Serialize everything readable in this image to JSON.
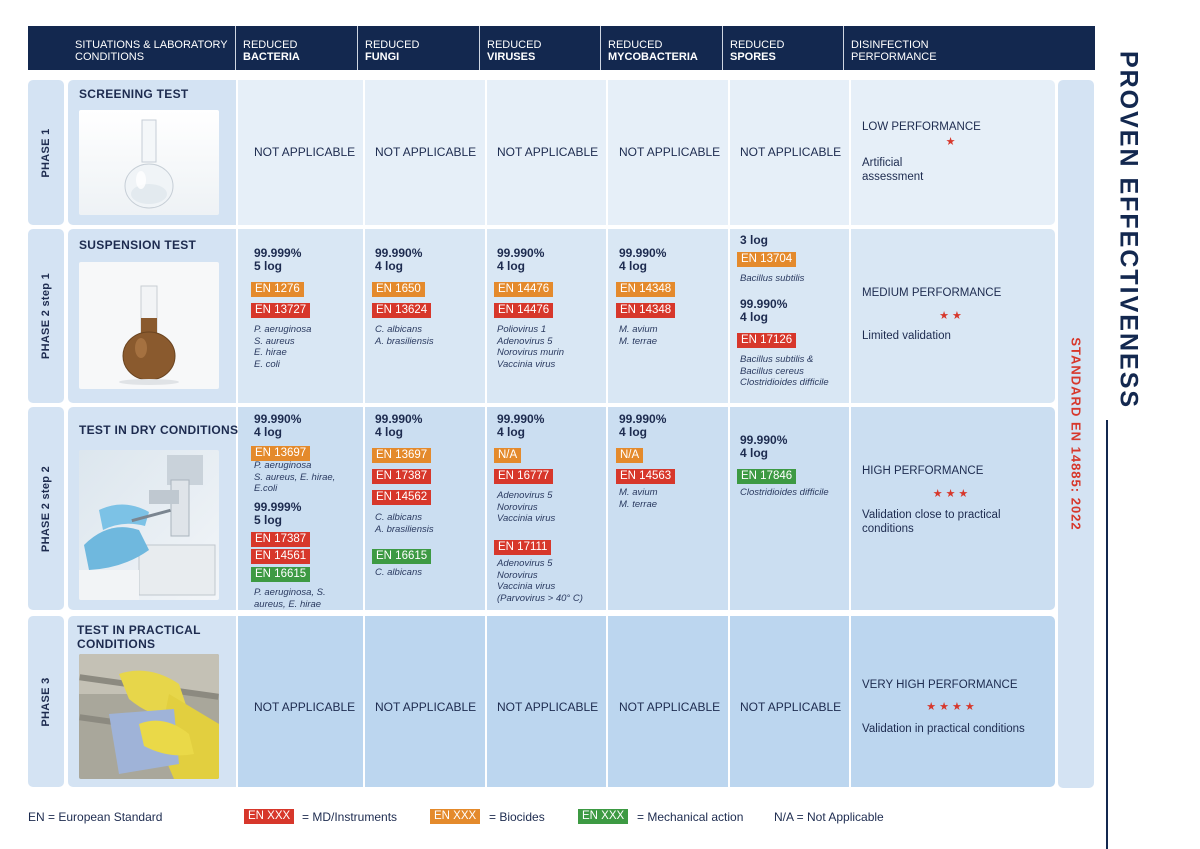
{
  "header": {
    "columns": [
      {
        "line1": "SITUATIONS & LABORATORY",
        "line2": "CONDITIONS"
      },
      {
        "line1": "REDUCED",
        "line2": "BACTERIA"
      },
      {
        "line1": "REDUCED",
        "line2": "FUNGI"
      },
      {
        "line1": "REDUCED",
        "line2": "VIRUSES"
      },
      {
        "line1": "REDUCED",
        "line2": "MYCOBACTERIA"
      },
      {
        "line1": "REDUCED",
        "line2": "SPORES"
      },
      {
        "line1": "DISINFECTION",
        "line2": "PERFORMANCE"
      }
    ]
  },
  "title": "PROVEN EFFECTIVENESS",
  "standard": "STANDARD EN 14885: 2022",
  "colors": {
    "header": "#13284f",
    "red": "#d7372b",
    "orange": "#e48a2c",
    "green": "#3d9a43"
  },
  "rows": [
    {
      "phase": "PHASE 1",
      "test": "SCREENING TEST",
      "photo": "flask-clear-photo",
      "bacteria": {
        "na": "NOT APPLICABLE"
      },
      "fungi": {
        "na": "NOT APPLICABLE"
      },
      "viruses": {
        "na": "NOT APPLICABLE"
      },
      "mycobacteria": {
        "na": "NOT APPLICABLE"
      },
      "spores": {
        "na": "NOT APPLICABLE"
      },
      "performance": {
        "title": "LOW PERFORMANCE",
        "stars": "★",
        "star_count": 1,
        "desc": "Artificial assessment"
      }
    },
    {
      "phase": "PHASE 2 step 1",
      "test": "SUSPENSION TEST",
      "photo": "flask-brown-liquid-photo",
      "bacteria": {
        "pct": "99.999%",
        "log": "5 log",
        "badges": [
          {
            "text": "EN 1276",
            "color": "orange"
          },
          {
            "text": "EN 13727",
            "color": "red"
          }
        ],
        "organisms": [
          "P. aeruginosa",
          "S. aureus",
          "E. hirae",
          "E. coli"
        ]
      },
      "fungi": {
        "pct": "99.990%",
        "log": "4 log",
        "badges": [
          {
            "text": "EN 1650",
            "color": "orange"
          },
          {
            "text": "EN 13624",
            "color": "red"
          }
        ],
        "organisms": [
          "C. albicans",
          "A. brasiliensis"
        ]
      },
      "viruses": {
        "pct": "99.990%",
        "log": "4 log",
        "badges": [
          {
            "text": "EN 14476",
            "color": "orange"
          },
          {
            "text": "EN 14476",
            "color": "red"
          }
        ],
        "organisms": [
          "Poliovirus 1",
          "Adenovirus 5",
          "Norovirus murin",
          "Vaccinia virus"
        ]
      },
      "mycobacteria": {
        "pct": "99.990%",
        "log": "4 log",
        "badges": [
          {
            "text": "EN 14348",
            "color": "orange"
          },
          {
            "text": "EN 14348",
            "color": "red"
          }
        ],
        "organisms": [
          "M. avium",
          "M. terrae"
        ]
      },
      "spores": {
        "log1": "3 log",
        "badge1": {
          "text": "EN 13704",
          "color": "orange"
        },
        "organisms1": [
          "Bacillus subtilis"
        ],
        "pct2": "99.990%",
        "log2": "4 log",
        "badge2": {
          "text": "EN 17126",
          "color": "red"
        },
        "organisms2": [
          "Bacillus subtilis &",
          "Bacillus cereus",
          "Clostridioides difficile"
        ]
      },
      "performance": {
        "title": "MEDIUM PERFORMANCE",
        "stars": "★★",
        "star_count": 2,
        "desc": "Limited validation"
      }
    },
    {
      "phase": "PHASE 2 step 2",
      "test": "TEST IN DRY CONDITIONS",
      "photo": "laboratory-microscope-photo",
      "bacteria": {
        "pct": "99.990%",
        "log": "4 log",
        "badge1": {
          "text": "EN 13697",
          "color": "orange"
        },
        "organisms1": [
          "P. aeruginosa",
          "S. aureus, E. hirae,",
          "E.coli"
        ],
        "pct2": "99.999%",
        "log2": "5 log",
        "badges2": [
          {
            "text": "EN 17387",
            "color": "red"
          },
          {
            "text": "EN 14561",
            "color": "red"
          },
          {
            "text": "EN 16615",
            "color": "green"
          }
        ],
        "organisms2": [
          "P. aeruginosa, S.",
          "aureus, E. hirae"
        ]
      },
      "fungi": {
        "pct": "99.990%",
        "log": "4 log",
        "badges": [
          {
            "text": "EN 13697",
            "color": "orange"
          },
          {
            "text": "EN 17387",
            "color": "red"
          },
          {
            "text": "EN 14562",
            "color": "red"
          }
        ],
        "organisms1": [
          "C. albicans",
          "A. brasiliensis"
        ],
        "badge2": {
          "text": "EN 16615",
          "color": "green"
        },
        "organisms2": [
          "C. albicans"
        ]
      },
      "viruses": {
        "pct": "99.990%",
        "log": "4 log",
        "badges": [
          {
            "text": "N/A",
            "color": "orange"
          },
          {
            "text": "EN 16777",
            "color": "red"
          }
        ],
        "organisms1": [
          "Adenovirus 5",
          "Norovirus",
          "Vaccinia virus"
        ],
        "badge2": {
          "text": "EN 17111",
          "color": "red"
        },
        "organisms2": [
          "Adenovirus 5",
          "Norovirus",
          "Vaccinia virus",
          "(Parvovirus > 40° C)"
        ]
      },
      "mycobacteria": {
        "pct": "99.990%",
        "log": "4 log",
        "badges": [
          {
            "text": "N/A",
            "color": "orange"
          },
          {
            "text": "EN 14563",
            "color": "red"
          }
        ],
        "organisms": [
          "M. avium",
          "M. terrae"
        ]
      },
      "spores": {
        "pct": "99.990%",
        "log": "4 log",
        "badge": {
          "text": "EN 17846",
          "color": "green"
        },
        "organisms": [
          "Clostridioides difficile"
        ]
      },
      "performance": {
        "title": "HIGH PERFORMANCE",
        "stars": "★★★",
        "star_count": 3,
        "desc": "Validation close to practical conditions"
      }
    },
    {
      "phase": "PHASE 3",
      "test": "TEST IN PRACTICAL CONDITIONS",
      "photo": "gloved-hand-cleaning-photo",
      "bacteria": {
        "na": "NOT APPLICABLE"
      },
      "fungi": {
        "na": "NOT APPLICABLE"
      },
      "viruses": {
        "na": "NOT APPLICABLE"
      },
      "mycobacteria": {
        "na": "NOT APPLICABLE"
      },
      "spores": {
        "na": "NOT APPLICABLE"
      },
      "performance": {
        "title": "VERY HIGH PERFORMANCE",
        "stars": "★★★★",
        "star_count": 4,
        "desc": "Validation in practical conditions"
      }
    }
  ],
  "legend": {
    "en": "EN = European Standard",
    "badge_text": "EN XXX",
    "md": "= MD/Instruments",
    "biocides": "= Biocides",
    "mechanical": "= Mechanical action",
    "na": "N/A = Not Applicable"
  }
}
